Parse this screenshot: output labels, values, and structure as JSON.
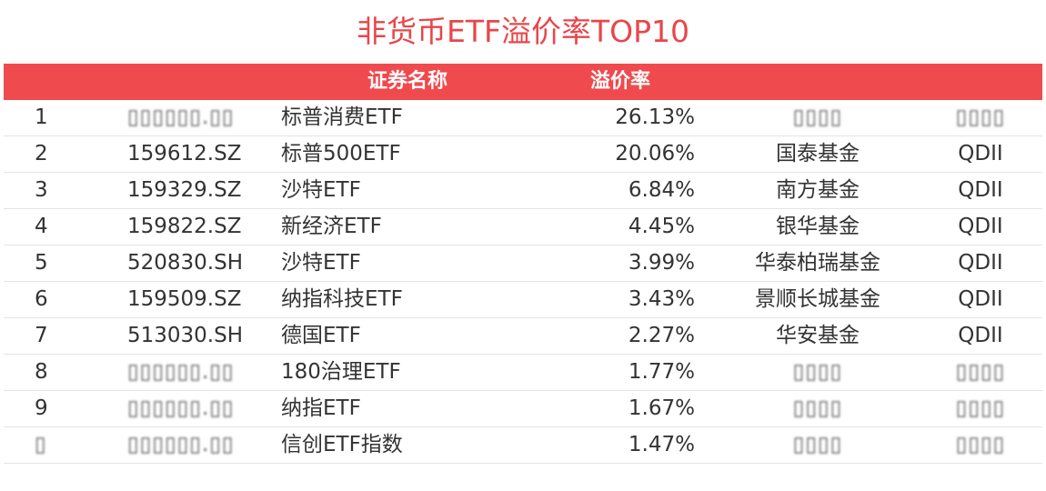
{
  "title": "非货币ETF溢价率TOP10",
  "header": {
    "name": "证券名称",
    "premium": "溢价率"
  },
  "rows": [
    {
      "rank": "1",
      "code": "",
      "name": "标普消费ETF",
      "premium": "26.13%",
      "company": "",
      "type": "",
      "blurred": true
    },
    {
      "rank": "2",
      "code": "159612.SZ",
      "name": "标普500ETF",
      "premium": "20.06%",
      "company": "国泰基金",
      "type": "QDII",
      "blurred": false
    },
    {
      "rank": "3",
      "code": "159329.SZ",
      "name": "沙特ETF",
      "premium": "6.84%",
      "company": "南方基金",
      "type": "QDII",
      "blurred": false
    },
    {
      "rank": "4",
      "code": "159822.SZ",
      "name": "新经济ETF",
      "premium": "4.45%",
      "company": "银华基金",
      "type": "QDII",
      "blurred": false
    },
    {
      "rank": "5",
      "code": "520830.SH",
      "name": "沙特ETF",
      "premium": "3.99%",
      "company": "华泰柏瑞基金",
      "type": "QDII",
      "blurred": false
    },
    {
      "rank": "6",
      "code": "159509.SZ",
      "name": "纳指科技ETF",
      "premium": "3.43%",
      "company": "景顺长城基金",
      "type": "QDII",
      "blurred": false
    },
    {
      "rank": "7",
      "code": "513030.SH",
      "name": "德国ETF",
      "premium": "2.27%",
      "company": "华安基金",
      "type": "QDII",
      "blurred": false
    },
    {
      "rank": "8",
      "code": "",
      "name": "180治理ETF",
      "premium": "1.77%",
      "company": "",
      "type": "",
      "blurred": true
    },
    {
      "rank": "9",
      "code": "",
      "name": "纳指ETF",
      "premium": "1.67%",
      "company": "",
      "type": "",
      "blurred": true
    },
    {
      "rank": "",
      "code": "",
      "name": "信创ETF指数",
      "premium": "1.47%",
      "company": "",
      "type": "",
      "blurred": true
    }
  ],
  "colors": {
    "accent": "#ef4a4e",
    "title": "#e8464a"
  }
}
